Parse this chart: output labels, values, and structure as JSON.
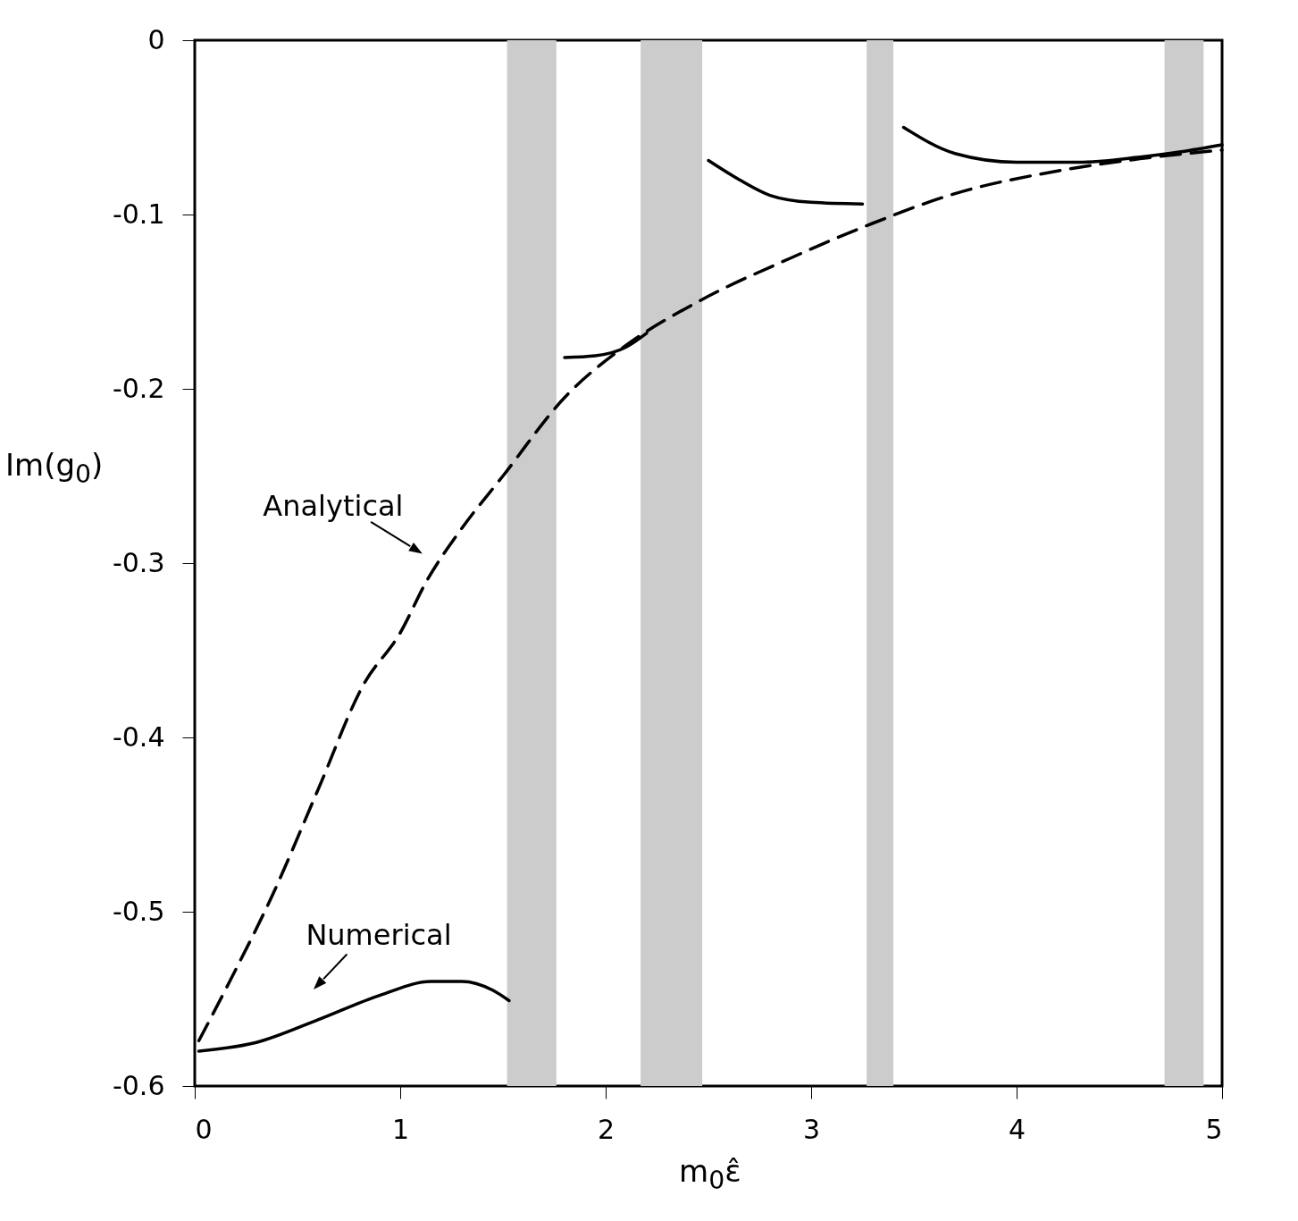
{
  "chart_data": {
    "type": "line",
    "xlabel": "m$_{0}$ε̂",
    "ylabel": "Im(g$_{0}$)",
    "xlim": [
      0,
      5
    ],
    "ylim": [
      -0.6,
      0
    ],
    "xticks": [
      0,
      1,
      2,
      3,
      4,
      5
    ],
    "yticks": [
      -0.6,
      -0.5,
      -0.4,
      -0.3,
      -0.2,
      -0.1,
      0
    ],
    "grid": false,
    "series": [
      {
        "color": "#000000",
        "line_style": "dashed",
        "x": [
          0.02,
          0.17,
          0.38,
          0.6,
          0.82,
          1.0,
          1.13,
          1.3,
          1.5,
          1.8,
          2.1,
          2.45,
          2.9,
          3.3,
          3.7,
          4.2,
          4.6,
          5.0
        ],
        "values": [
          -0.574,
          -0.54,
          -0.49,
          -0.43,
          -0.37,
          -0.34,
          -0.31,
          -0.28,
          -0.25,
          -0.205,
          -0.175,
          -0.15,
          -0.125,
          -0.105,
          -0.088,
          -0.075,
          -0.068,
          -0.063
        ]
      },
      {
        "color": "#000000",
        "line_style": "solid",
        "x": [
          0.02,
          0.3,
          0.6,
          0.9,
          1.15,
          1.3,
          1.45,
          1.53
        ],
        "values": [
          -0.58,
          -0.575,
          -0.562,
          -0.548,
          -0.54,
          -0.54,
          -0.545,
          -0.551
        ]
      },
      {
        "color": "#000000",
        "line_style": "solid",
        "x": [
          1.8,
          1.95,
          2.1,
          2.2
        ],
        "values": [
          -0.182,
          -0.181,
          -0.176,
          -0.168
        ]
      },
      {
        "color": "#000000",
        "line_style": "solid",
        "x": [
          2.5,
          2.65,
          2.8,
          3.0,
          3.25
        ],
        "values": [
          -0.069,
          -0.08,
          -0.089,
          -0.093,
          -0.094
        ]
      },
      {
        "color": "#000000",
        "line_style": "solid",
        "x": [
          3.45,
          3.7,
          4.0,
          4.3,
          4.6,
          4.8,
          5.0
        ],
        "values": [
          -0.05,
          -0.065,
          -0.07,
          -0.07,
          -0.067,
          -0.064,
          -0.06
        ]
      }
    ],
    "bands": [
      {
        "axis": "x",
        "from": 1.52,
        "to": 1.76,
        "color": "#cccccc"
      },
      {
        "axis": "x",
        "from": 2.17,
        "to": 2.47,
        "color": "#cccccc"
      },
      {
        "axis": "x",
        "from": 3.27,
        "to": 3.4,
        "color": "#cccccc"
      },
      {
        "axis": "x",
        "from": 4.72,
        "to": 4.91,
        "color": "#cccccc"
      }
    ],
    "annotations": [
      {
        "text": "Analytical",
        "x": 1.13,
        "y": -0.31
      },
      {
        "text": "Numerical",
        "x": 0.6,
        "y": -0.56
      }
    ]
  }
}
